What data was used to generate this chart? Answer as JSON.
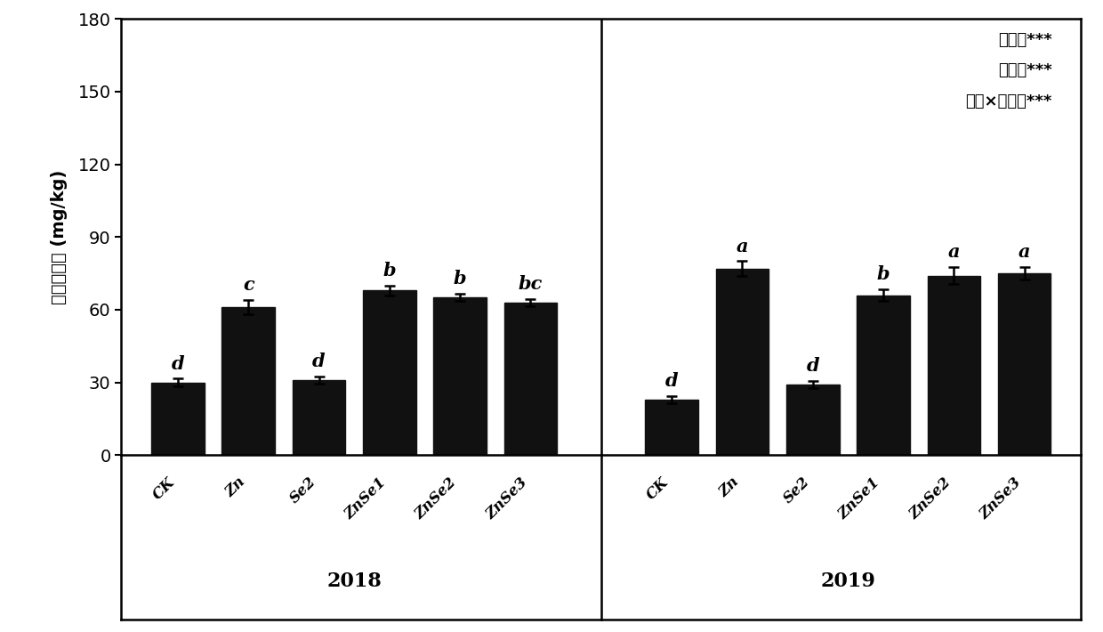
{
  "categories_2018": [
    "CK",
    "Zn",
    "Se2",
    "ZnSe1",
    "ZnSe2",
    "ZnSe3"
  ],
  "categories_2019": [
    "CK",
    "Zn",
    "Se2",
    "ZnSe1",
    "ZnSe2",
    "ZnSe3"
  ],
  "values_2018": [
    30,
    61,
    31,
    68,
    65,
    63
  ],
  "values_2019": [
    23,
    77,
    29,
    66,
    74,
    75
  ],
  "errors_2018": [
    1.5,
    3.0,
    1.5,
    2.0,
    1.5,
    1.5
  ],
  "errors_2019": [
    1.5,
    3.0,
    1.5,
    2.5,
    3.5,
    2.5
  ],
  "labels_2018": [
    "d",
    "c",
    "d",
    "b",
    "b",
    "bc"
  ],
  "labels_2019": [
    "d",
    "a",
    "d",
    "b",
    "a",
    "a"
  ],
  "bar_color": "#111111",
  "ylabel": "粒粒锤含量 (mg/kg)",
  "ylim": [
    0,
    180
  ],
  "yticks": [
    0,
    30,
    60,
    90,
    120,
    150,
    180
  ],
  "year_2018": "2018",
  "year_2019": "2019",
  "annotation_line1": "处理：***",
  "annotation_line2": "年份：***",
  "annotation_line3": "处理×年份：***",
  "background_color": "#ffffff"
}
